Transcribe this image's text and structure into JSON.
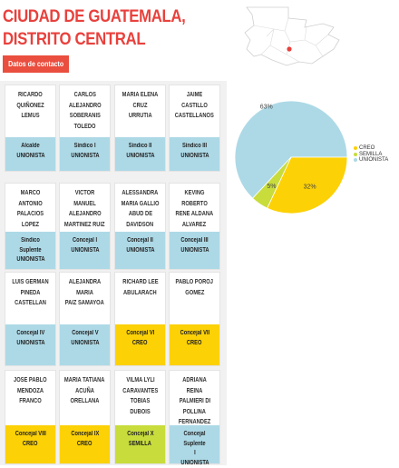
{
  "header": {
    "title_line1": "CIUDAD DE GUATEMALA,",
    "title_line2": "DISTRITO CENTRAL",
    "contact_button": "Datos de contacto"
  },
  "map": {
    "highlight_color": "#e8413d"
  },
  "colors": {
    "unionista": "#add9e6",
    "creo": "#fcd106",
    "semilla": "#c8dc3c",
    "accent": "#e8413d"
  },
  "members": [
    {
      "name": [
        "RICARDO",
        "QUIÑONEZ LEMUS"
      ],
      "role": [
        "Alcalde",
        "UNIONISTA"
      ],
      "party": "unionista"
    },
    {
      "name": [
        "CARLOS",
        "ALEJANDRO",
        "SOBERANIS",
        "TOLEDO"
      ],
      "role": [
        "Síndico I",
        "UNIONISTA"
      ],
      "party": "unionista"
    },
    {
      "name": [
        "MARIA ELENA CRUZ",
        "URRUTIA"
      ],
      "role": [
        "Síndico II",
        "UNIONISTA"
      ],
      "party": "unionista"
    },
    {
      "name": [
        "JAIME CASTILLO",
        "CASTELLANOS"
      ],
      "role": [
        "Síndico III",
        "UNIONISTA"
      ],
      "party": "unionista"
    },
    {
      "name": [
        "MARCO ANTONIO",
        "PALACIOS LOPEZ"
      ],
      "role": [
        "Síndico Suplente",
        "UNIONISTA"
      ],
      "party": "unionista"
    },
    {
      "name": [
        "VICTOR MANUEL",
        "ALEJANDRO",
        "MARTINEZ RUIZ"
      ],
      "role": [
        "Concejal I",
        "UNIONISTA"
      ],
      "party": "unionista"
    },
    {
      "name": [
        "ALESSANDRA",
        "MARIA GALLIO",
        "ABUD DE",
        "DAVIDSON"
      ],
      "role": [
        "Concejal II",
        "UNIONISTA"
      ],
      "party": "unionista"
    },
    {
      "name": [
        "KEVING ROBERTO",
        "RENE ALDANA",
        "ALVAREZ"
      ],
      "role": [
        "Concejal III",
        "UNIONISTA"
      ],
      "party": "unionista"
    },
    {
      "name": [
        "LUIS GERMAN",
        "PINEDA CASTELLAN"
      ],
      "role": [
        "Concejal IV",
        "UNIONISTA"
      ],
      "party": "unionista"
    },
    {
      "name": [
        "ALEJANDRA MARIA",
        "PAIZ SAMAYOA"
      ],
      "role": [
        "Concejal V",
        "UNIONISTA"
      ],
      "party": "unionista"
    },
    {
      "name": [
        "RICHARD LEE",
        "ABULARACH"
      ],
      "role": [
        "Concejal VI",
        "CREO"
      ],
      "party": "creo"
    },
    {
      "name": [
        "PABLO POROJ",
        "GOMEZ"
      ],
      "role": [
        "Concejal VII",
        "CREO"
      ],
      "party": "creo"
    },
    {
      "name": [
        "JOSE PABLO",
        "MENDOZA FRANCO"
      ],
      "role": [
        "Concejal VIII",
        "CREO"
      ],
      "party": "creo"
    },
    {
      "name": [
        "MARIA TATIANA",
        "ACUÑA ORELLANA"
      ],
      "role": [
        "Concejal IX",
        "CREO"
      ],
      "party": "creo"
    },
    {
      "name": [
        "VILMA LYLI",
        "CARAVANTES",
        "TOBIAS DUBOIS"
      ],
      "role": [
        "Concejal X",
        "SEMILLA"
      ],
      "party": "semilla"
    },
    {
      "name": [
        "ADRIANA REINA",
        "PALMIERI DI",
        "POLLINA",
        "FERNANDEZ"
      ],
      "role": [
        "Concejal Suplente",
        "I",
        "UNIONISTA"
      ],
      "party": "unionista"
    }
  ],
  "chart_data": {
    "type": "pie",
    "slices": [
      {
        "label": "UNIONISTA",
        "value": 63,
        "display": "63%",
        "color": "#add9e6"
      },
      {
        "label": "CREO",
        "value": 32,
        "display": "32%",
        "color": "#fcd106"
      },
      {
        "label": "SEMILLA",
        "value": 5,
        "display": "5%",
        "color": "#c8dc3c"
      }
    ],
    "legend": [
      {
        "label": "CREO",
        "color": "#fcd106"
      },
      {
        "label": "SEMILLA",
        "color": "#c8dc3c"
      },
      {
        "label": "UNIONISTA",
        "color": "#add9e6"
      }
    ],
    "legend_position": "right"
  }
}
